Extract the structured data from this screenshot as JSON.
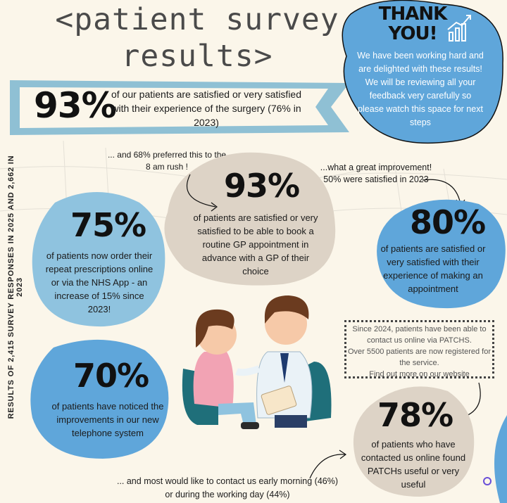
{
  "title": {
    "line1": "<patient survey",
    "line2": "results>"
  },
  "headline": {
    "percent": "93%",
    "text": "of our patients are satisfied or very satisfied with their experience of the surgery  (76% in 2023)"
  },
  "thank_you": {
    "title1": "THANK",
    "title2": "YOU!",
    "text": "We have been working hard and are delighted with these results! We will be reviewing all your feedback very carefully so please watch this space for next steps"
  },
  "side_label": "RESULTS OF 2,415 SURVEY RESPONSES IN 2025 AND 2,662  IN 2023",
  "stats": [
    {
      "percent": "93%",
      "text": "of patients are satisfied or very satisfied to be able to book a routine GP appointment in advance with a GP of their choice"
    },
    {
      "percent": "75%",
      "text": "of patients now order their repeat prescriptions online or  via the NHS App - an increase of 15% since 2023!"
    },
    {
      "percent": "80%",
      "text": "of patients are  satisfied or very satisfied  with their experience of making an appointment"
    },
    {
      "percent": "70%",
      "text": "of patients have  noticed the  improvements in our new telephone system"
    },
    {
      "percent": "78%",
      "text": "of patients who have contacted us online found PATCHs useful or very useful"
    }
  ],
  "notes": {
    "rush": "... and 68% preferred this to the 8 am rush !",
    "improvement": "...what a great improvement! 50% were satisfied in 2023",
    "morning": "... and most would like to contact us early morning (46%) or during the working day (44%)"
  },
  "patchs": {
    "line1": "Since 2024, patients have been able to contact us online via PATCHS.",
    "line2": "Over 5500 patients are now registered for the service.",
    "line3": "Find out more on our website"
  },
  "colors": {
    "blue": "#5fa6da",
    "light_blue": "#8fc3df",
    "beige": "#ddd3c6",
    "banner": "#8fc0d4"
  }
}
